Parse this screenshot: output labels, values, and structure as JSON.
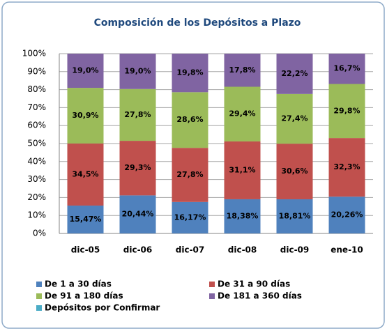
{
  "chart_data": {
    "type": "bar",
    "stack": "percent",
    "title": "Composición de los Depósitos a Plazo",
    "categories": [
      "dic-05",
      "dic-06",
      "dic-07",
      "dic-08",
      "dic-09",
      "ene-10"
    ],
    "series": [
      {
        "name": "De 1 a 30 días",
        "color": "#4f81bd",
        "values": [
          15.47,
          20.44,
          16.17,
          18.38,
          18.81,
          20.26
        ],
        "value_labels": [
          "15,47%",
          "20,44%",
          "16,17%",
          "18,38%",
          "18,81%",
          "20,26%"
        ]
      },
      {
        "name": "De 31 a 90 días",
        "color": "#c0504d",
        "values": [
          34.5,
          29.3,
          27.8,
          31.1,
          30.6,
          32.3
        ],
        "value_labels": [
          "34,5%",
          "29,3%",
          "27,8%",
          "31,1%",
          "30,6%",
          "32,3%"
        ]
      },
      {
        "name": "De 91 a 180 días",
        "color": "#9bbb59",
        "values": [
          30.9,
          27.8,
          28.6,
          29.4,
          27.4,
          29.8
        ],
        "value_labels": [
          "30,9%",
          "27,8%",
          "28,6%",
          "29,4%",
          "27,4%",
          "29,8%"
        ]
      },
      {
        "name": "De 181 a 360 días",
        "color": "#8064a2",
        "values": [
          19.0,
          19.0,
          19.8,
          17.8,
          22.2,
          16.7
        ],
        "value_labels": [
          "19,0%",
          "19,0%",
          "19,8%",
          "17,8%",
          "22,2%",
          "16,7%"
        ]
      },
      {
        "name": "Depósitos por Confirmar",
        "color": "#4bacc6",
        "values": [
          0,
          0,
          0,
          0,
          0,
          0
        ]
      }
    ],
    "ylim": [
      0,
      100
    ],
    "yticks": [
      {
        "value": 0,
        "label": "0%"
      },
      {
        "value": 10,
        "label": "10%"
      },
      {
        "value": 20,
        "label": "20%"
      },
      {
        "value": 30,
        "label": "30%"
      },
      {
        "value": 40,
        "label": "40%"
      },
      {
        "value": 50,
        "label": "50%"
      },
      {
        "value": 60,
        "label": "60%"
      },
      {
        "value": 70,
        "label": "70%"
      },
      {
        "value": 80,
        "label": "80%"
      },
      {
        "value": 90,
        "label": "90%"
      },
      {
        "value": 100,
        "label": "100%"
      }
    ],
    "grid": true,
    "legend": "bottom"
  }
}
